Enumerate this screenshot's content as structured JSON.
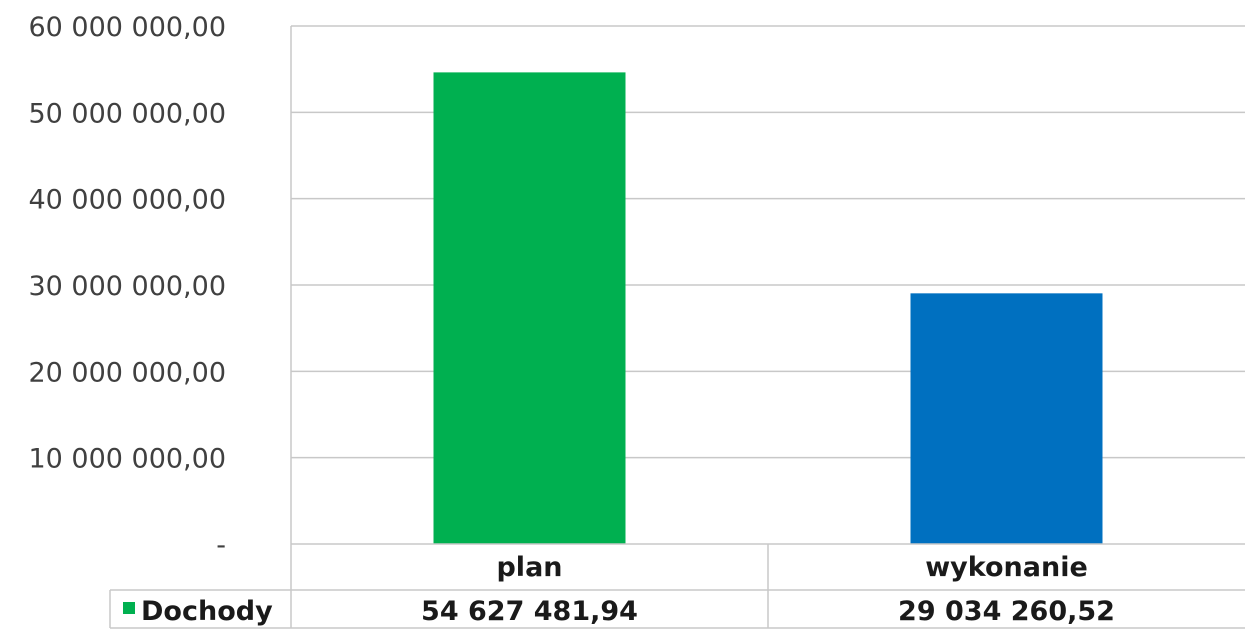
{
  "chart_data": {
    "type": "bar",
    "categories": [
      "plan",
      "wykonanie"
    ],
    "series": [
      {
        "name": "Dochody",
        "values": [
          54627481.94,
          29034260.52
        ],
        "value_labels": [
          "54 627 481,94",
          "29 034 260,52"
        ]
      }
    ],
    "bar_colors": [
      "#00b050",
      "#0070c0"
    ],
    "legend_marker_color": "#00b050",
    "ylim": [
      0,
      60000000
    ],
    "y_ticks": [
      0,
      10000000,
      20000000,
      30000000,
      40000000,
      50000000,
      60000000
    ],
    "y_tick_labels": [
      "-",
      "10 000 000,00",
      "20 000 000,00",
      "30 000 000,00",
      "40 000 000,00",
      "50 000 000,00",
      "60 000 000,00"
    ],
    "grid": true,
    "legend": "data-table",
    "title": "",
    "xlabel": "",
    "ylabel": ""
  }
}
